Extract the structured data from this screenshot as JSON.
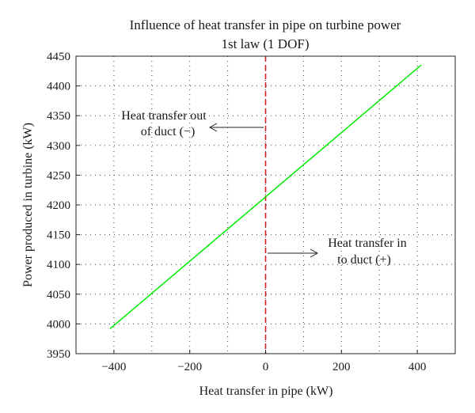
{
  "chart_data": {
    "type": "line",
    "title": "Influence of heat transfer in pipe on turbine power",
    "subtitle": "1st law (1 DOF)",
    "xlabel": "Heat transfer in pipe (kW)",
    "ylabel": "Power produced in turbine (kW)",
    "xlim": [
      -500,
      500
    ],
    "ylim": [
      3950,
      4450
    ],
    "xticks": [
      -400,
      -200,
      0,
      200,
      400
    ],
    "xtick_labels": [
      "−400",
      "−200",
      "0",
      "200",
      "400"
    ],
    "yticks": [
      3950,
      4000,
      4050,
      4100,
      4150,
      4200,
      4250,
      4300,
      4350,
      4400,
      4450
    ],
    "ytick_labels": [
      "3950",
      "4000",
      "4050",
      "4100",
      "4150",
      "4200",
      "4250",
      "4300",
      "4350",
      "4400",
      "4450"
    ],
    "grid": true,
    "series": [
      {
        "color": "#00ee00",
        "x": [
          -410,
          410
        ],
        "y": [
          3992,
          4435
        ]
      }
    ],
    "reference_line": {
      "orientation": "vertical",
      "x": 0,
      "color": "#d62020",
      "style": "dashed"
    },
    "annotations": [
      {
        "lines": [
          "Heat transfer out",
          "of duct (−)"
        ],
        "arrow": "left"
      },
      {
        "lines": [
          "Heat transfer in",
          "to duct (+)"
        ],
        "arrow": "right"
      }
    ]
  }
}
